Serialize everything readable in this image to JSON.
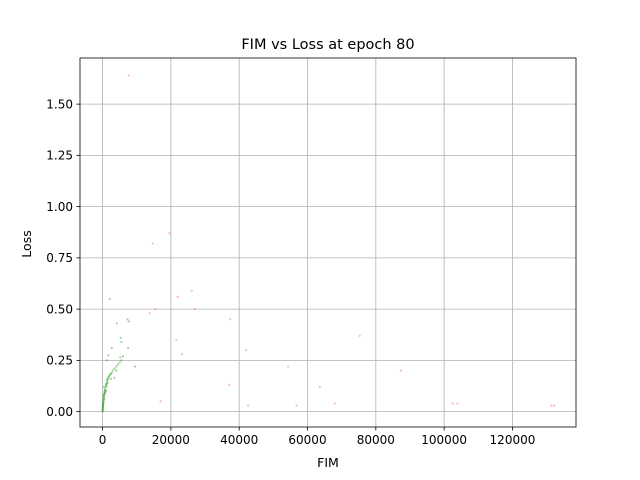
{
  "chart_data": {
    "type": "scatter",
    "title": "FIM vs Loss at epoch 80",
    "xlabel": "FIM",
    "ylabel": "Loss",
    "xlim": [
      -6600,
      138600
    ],
    "ylim": [
      -0.075,
      1.725
    ],
    "xticks": [
      0,
      20000,
      40000,
      60000,
      80000,
      100000,
      120000
    ],
    "xtick_labels": [
      "0",
      "20000",
      "40000",
      "60000",
      "80000",
      "100000",
      "120000"
    ],
    "yticks": [
      0.0,
      0.25,
      0.5,
      0.75,
      1.0,
      1.25,
      1.5
    ],
    "ytick_labels": [
      "0.00",
      "0.25",
      "0.50",
      "0.75",
      "1.00",
      "1.25",
      "1.50"
    ],
    "grid": true,
    "marker_color": "#2ca02c",
    "outlier_color": "#ff7f7f",
    "series": [
      {
        "points": [
          [
            0,
            0.0
          ],
          [
            20,
            0.005
          ],
          [
            40,
            0.01
          ],
          [
            60,
            0.015
          ],
          [
            80,
            0.02
          ],
          [
            100,
            0.025
          ],
          [
            120,
            0.03
          ],
          [
            150,
            0.035
          ],
          [
            180,
            0.04
          ],
          [
            200,
            0.045
          ],
          [
            230,
            0.05
          ],
          [
            260,
            0.055
          ],
          [
            300,
            0.06
          ],
          [
            330,
            0.065
          ],
          [
            360,
            0.07
          ],
          [
            400,
            0.075
          ],
          [
            450,
            0.08
          ],
          [
            500,
            0.085
          ],
          [
            550,
            0.09
          ],
          [
            600,
            0.095
          ],
          [
            650,
            0.1
          ],
          [
            700,
            0.105
          ],
          [
            800,
            0.11
          ],
          [
            900,
            0.12
          ],
          [
            1000,
            0.13
          ],
          [
            1100,
            0.135
          ],
          [
            1200,
            0.14
          ],
          [
            1300,
            0.15
          ],
          [
            1400,
            0.155
          ],
          [
            1500,
            0.16
          ],
          [
            1700,
            0.165
          ],
          [
            1800,
            0.17
          ],
          [
            2000,
            0.175
          ],
          [
            2200,
            0.18
          ],
          [
            2500,
            0.185
          ],
          [
            2700,
            0.19
          ],
          [
            3000,
            0.2
          ],
          [
            3500,
            0.21
          ],
          [
            4000,
            0.22
          ],
          [
            4500,
            0.23
          ],
          [
            5000,
            0.24
          ],
          [
            5500,
            0.25
          ],
          [
            5200,
            0.265
          ],
          [
            6000,
            0.27
          ],
          [
            1300,
            0.25
          ],
          [
            1700,
            0.275
          ],
          [
            2700,
            0.31
          ],
          [
            5500,
            0.34
          ],
          [
            5300,
            0.36
          ],
          [
            7500,
            0.31
          ],
          [
            2100,
            0.55
          ],
          [
            7300,
            0.45
          ],
          [
            7700,
            0.44
          ],
          [
            4200,
            0.43
          ],
          [
            9500,
            0.22
          ],
          [
            400,
            0.12
          ],
          [
            300,
            0.08
          ],
          [
            500,
            0.06
          ],
          [
            250,
            0.04
          ],
          [
            150,
            0.03
          ],
          [
            100,
            0.02
          ],
          [
            60,
            0.01
          ],
          [
            800,
            0.09
          ],
          [
            1000,
            0.1
          ],
          [
            1200,
            0.125
          ],
          [
            1500,
            0.14
          ],
          [
            2500,
            0.16
          ],
          [
            3500,
            0.165
          ],
          [
            4000,
            0.2
          ]
        ]
      },
      {
        "points": [
          [
            7700,
            1.64
          ],
          [
            19600,
            0.87
          ],
          [
            14700,
            0.82
          ],
          [
            26100,
            0.59
          ],
          [
            22000,
            0.56
          ],
          [
            13800,
            0.48
          ],
          [
            15400,
            0.5
          ],
          [
            27000,
            0.5
          ],
          [
            37400,
            0.45
          ],
          [
            21600,
            0.35
          ],
          [
            23200,
            0.28
          ],
          [
            42000,
            0.3
          ],
          [
            75300,
            0.37
          ],
          [
            54300,
            0.22
          ],
          [
            87300,
            0.2
          ],
          [
            37100,
            0.13
          ],
          [
            63600,
            0.12
          ],
          [
            17000,
            0.05
          ],
          [
            42600,
            0.03
          ],
          [
            56800,
            0.03
          ],
          [
            68000,
            0.04
          ],
          [
            102500,
            0.04
          ],
          [
            103900,
            0.04
          ],
          [
            131400,
            0.03
          ],
          [
            132200,
            0.03
          ]
        ]
      }
    ]
  }
}
